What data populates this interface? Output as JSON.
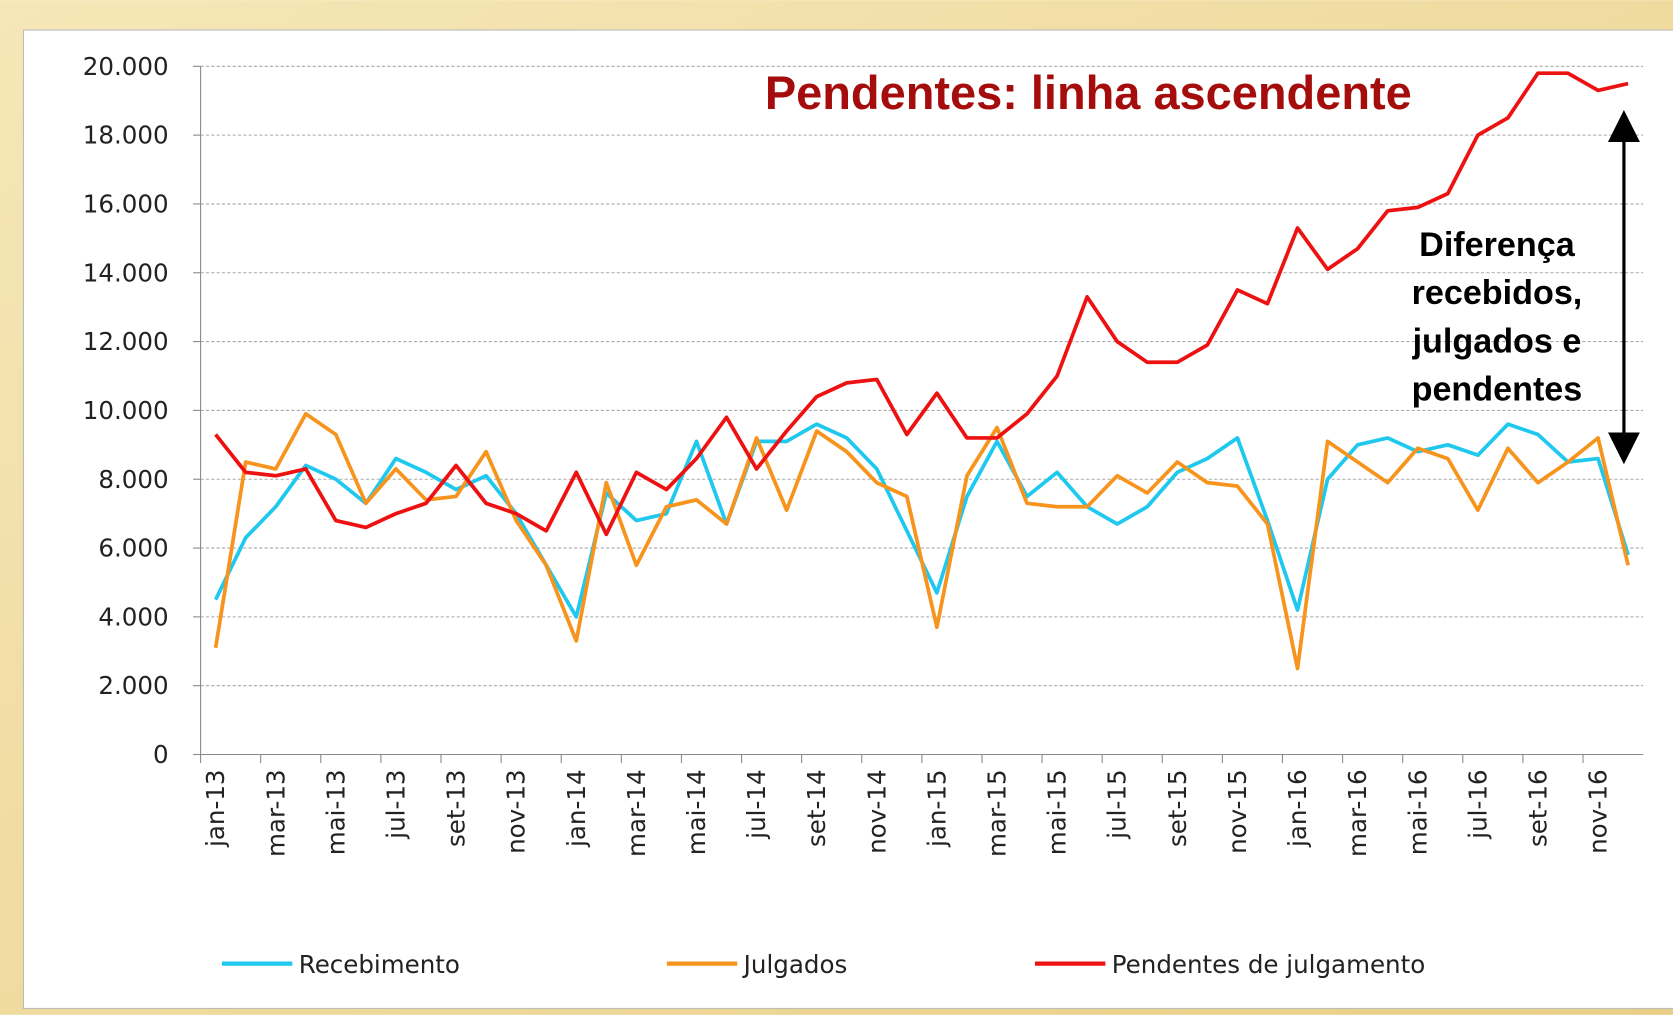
{
  "chart_data": {
    "type": "line",
    "annotations": [
      {
        "text": "Pendentes: linha ascendente"
      },
      {
        "lines": [
          "Diferença",
          "recebidos,",
          "julgados e",
          "pendentes"
        ]
      }
    ],
    "categories": [
      "jan-13",
      null,
      "mar-13",
      null,
      "mai-13",
      null,
      "jul-13",
      null,
      "set-13",
      null,
      "nov-13",
      null,
      "jan-14",
      null,
      "mar-14",
      null,
      "mai-14",
      null,
      "jul-14",
      null,
      "set-14",
      null,
      "nov-14",
      null,
      "jan-15",
      null,
      "mar-15",
      null,
      "mai-15",
      null,
      "jul-15",
      null,
      "set-15",
      null,
      "nov-15",
      null,
      "jan-16",
      null,
      "mar-16",
      null,
      "mai-16",
      null,
      "jul-16",
      null,
      "set-16",
      null,
      "nov-16",
      null
    ],
    "series": [
      {
        "name": "Recebimento",
        "color": "#1ec8ee",
        "values": [
          4500,
          6300,
          7200,
          8400,
          8000,
          7300,
          8600,
          8200,
          7700,
          8100,
          7000,
          5500,
          4000,
          7600,
          6800,
          7000,
          9100,
          6700,
          9100,
          9100,
          9600,
          9200,
          8300,
          6500,
          4700,
          7500,
          9100,
          7500,
          8200,
          7200,
          6700,
          7200,
          8200,
          8600,
          9200,
          6800,
          4200,
          8000,
          9000,
          9200,
          8800,
          9000,
          8700,
          9600,
          9300,
          8500,
          8600,
          5800
        ]
      },
      {
        "name": "Julgados",
        "color": "#f7941d",
        "values": [
          3100,
          8500,
          8300,
          9900,
          9300,
          7300,
          8300,
          7400,
          7500,
          8800,
          6800,
          5500,
          3300,
          7900,
          5500,
          7200,
          7400,
          6700,
          9200,
          7100,
          9400,
          8800,
          7900,
          7500,
          3700,
          8100,
          9500,
          7300,
          7200,
          7200,
          8100,
          7600,
          8500,
          7900,
          7800,
          6700,
          2500,
          9100,
          8500,
          7900,
          8900,
          8600,
          7100,
          8900,
          7900,
          8500,
          9200,
          5500
        ]
      },
      {
        "name": "Pendentes de julgamento",
        "color": "#ee1111",
        "values": [
          9300,
          8200,
          8100,
          8300,
          6800,
          6600,
          7000,
          7300,
          8400,
          7300,
          7000,
          6500,
          8200,
          6400,
          8200,
          7700,
          8600,
          9800,
          8300,
          9400,
          10400,
          10800,
          10900,
          9300,
          10500,
          9200,
          9200,
          9900,
          11000,
          13300,
          12000,
          11400,
          11400,
          11900,
          13500,
          13100,
          15300,
          14100,
          14700,
          15800,
          15900,
          16300,
          18000,
          18500,
          19800,
          19800,
          19300,
          19500
        ]
      }
    ],
    "ylim": [
      0,
      20000
    ],
    "yticks": [
      0,
      {
        "value": 2000,
        "label": "2.000"
      },
      {
        "value": 4000,
        "label": "4.000"
      },
      {
        "value": 6000,
        "label": "6.000"
      },
      {
        "value": 8000,
        "label": "8.000"
      },
      {
        "value": 10000,
        "label": "10.000"
      },
      {
        "value": 12000,
        "label": "12.000"
      },
      {
        "value": 14000,
        "label": "14.000"
      },
      {
        "value": 16000,
        "label": "16.000"
      },
      {
        "value": 18000,
        "label": "18.000"
      },
      {
        "value": 20000,
        "label": "20.000"
      }
    ],
    "grid": true,
    "legend": "bottom"
  }
}
